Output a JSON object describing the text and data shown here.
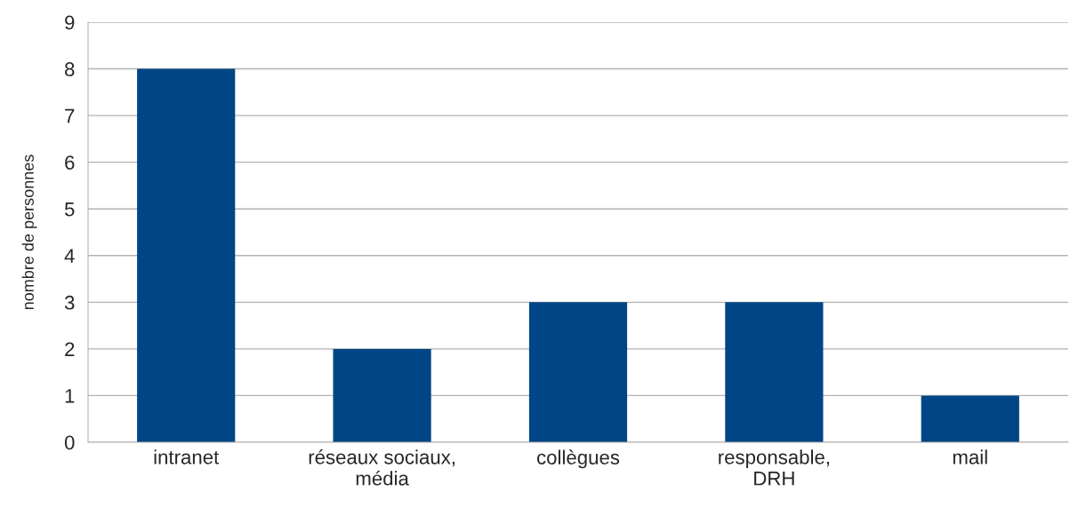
{
  "chart_data": {
    "type": "bar",
    "ylabel": "nombre de personnes",
    "categories": [
      "intranet",
      "réseaux sociaux,\nmédia",
      "collègues",
      "responsable,\nDRH",
      "mail"
    ],
    "values": [
      8,
      2,
      3,
      3,
      1
    ],
    "color": "#004586",
    "ylim": [
      0,
      9
    ],
    "yticks": [
      0,
      1,
      2,
      3,
      4,
      5,
      6,
      7,
      8,
      9
    ],
    "grid": "y",
    "legend": false
  }
}
